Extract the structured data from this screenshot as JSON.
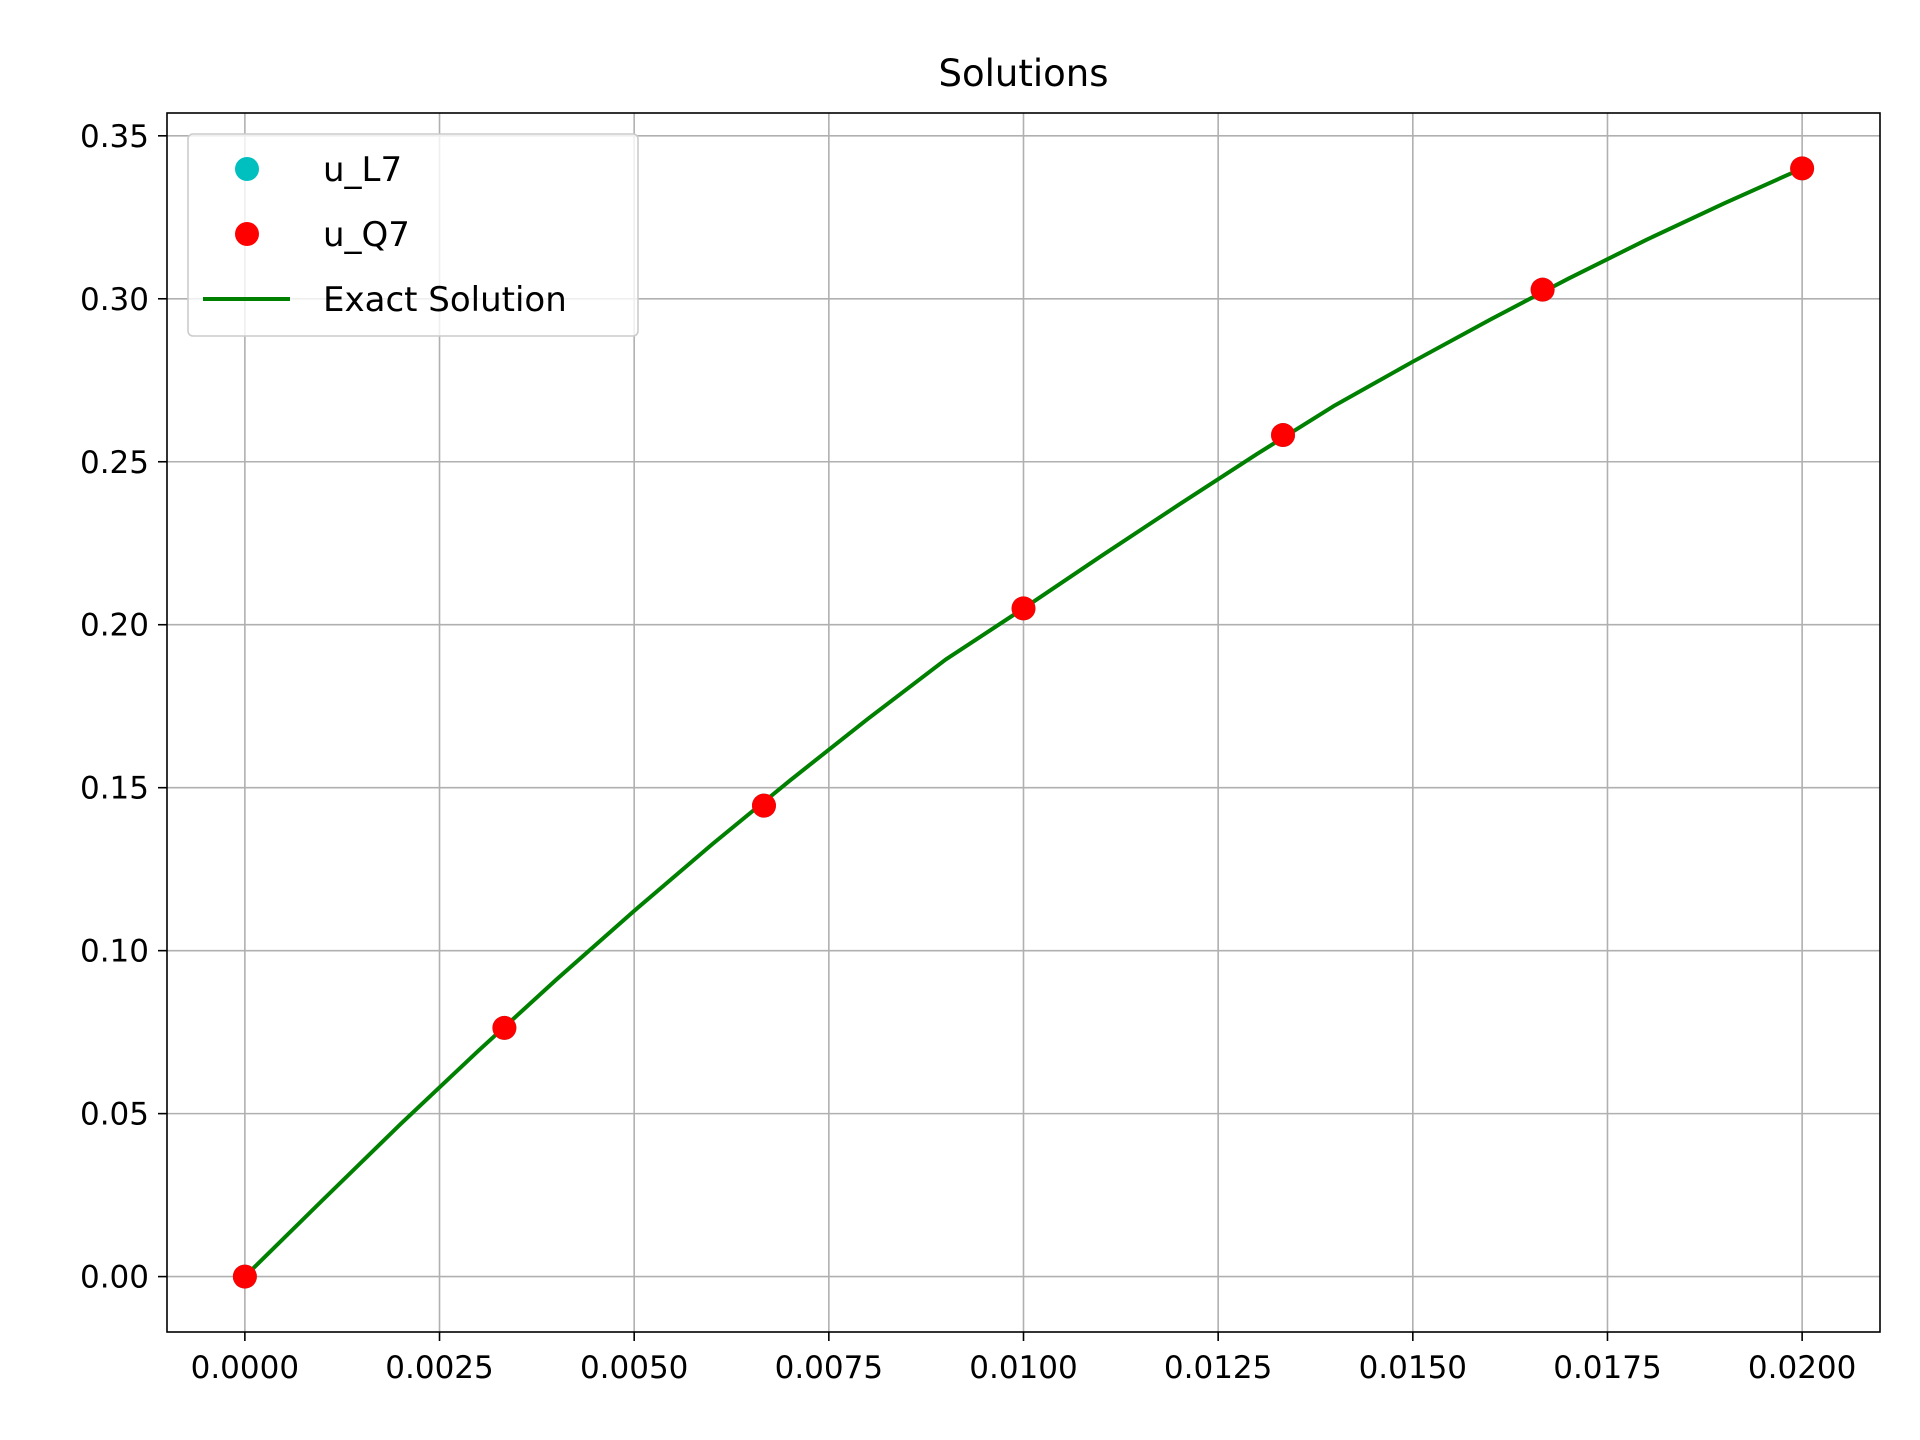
{
  "chart_data": {
    "type": "line",
    "title": "Solutions",
    "xlabel": "",
    "ylabel": "",
    "xlim": [
      -0.001,
      0.021
    ],
    "ylim": [
      -0.017,
      0.357
    ],
    "xticks": [
      0.0,
      0.0025,
      0.005,
      0.0075,
      0.01,
      0.0125,
      0.015,
      0.0175,
      0.02
    ],
    "xtick_labels": [
      "0.0000",
      "0.0025",
      "0.0050",
      "0.0075",
      "0.0100",
      "0.0125",
      "0.0150",
      "0.0175",
      "0.0200"
    ],
    "yticks": [
      0.0,
      0.05,
      0.1,
      0.15,
      0.2,
      0.25,
      0.3,
      0.35
    ],
    "ytick_labels": [
      "0.00",
      "0.05",
      "0.10",
      "0.15",
      "0.20",
      "0.25",
      "0.30",
      "0.35"
    ],
    "grid": true,
    "legend_position": "top-left",
    "series": [
      {
        "name": "u_L7",
        "style": "markers",
        "color": "#00bfbf",
        "x": [
          0.0,
          0.003333,
          0.006667,
          0.01,
          0.013333,
          0.016667,
          0.02
        ],
        "y": [
          0.0,
          0.0763,
          0.1445,
          0.205,
          0.2582,
          0.3028,
          0.34
        ]
      },
      {
        "name": "u_Q7",
        "style": "markers",
        "color": "#ff0000",
        "x": [
          0.0,
          0.003333,
          0.006667,
          0.01,
          0.013333,
          0.016667,
          0.02
        ],
        "y": [
          0.0,
          0.0763,
          0.1445,
          0.205,
          0.2582,
          0.3028,
          0.34
        ]
      },
      {
        "name": "Exact Solution",
        "style": "line",
        "color": "#008000",
        "x": [
          0.0,
          0.001,
          0.002,
          0.003,
          0.004,
          0.005,
          0.006,
          0.007,
          0.008,
          0.009,
          0.01,
          0.011,
          0.012,
          0.013,
          0.014,
          0.015,
          0.016,
          0.017,
          0.018,
          0.019,
          0.02
        ],
        "y": [
          0.0,
          0.0235,
          0.0468,
          0.0693,
          0.0911,
          0.1122,
          0.1326,
          0.1522,
          0.1711,
          0.1893,
          0.205,
          0.2211,
          0.2369,
          0.2524,
          0.2673,
          0.2807,
          0.2937,
          0.3062,
          0.3181,
          0.3293,
          0.34
        ]
      }
    ]
  }
}
